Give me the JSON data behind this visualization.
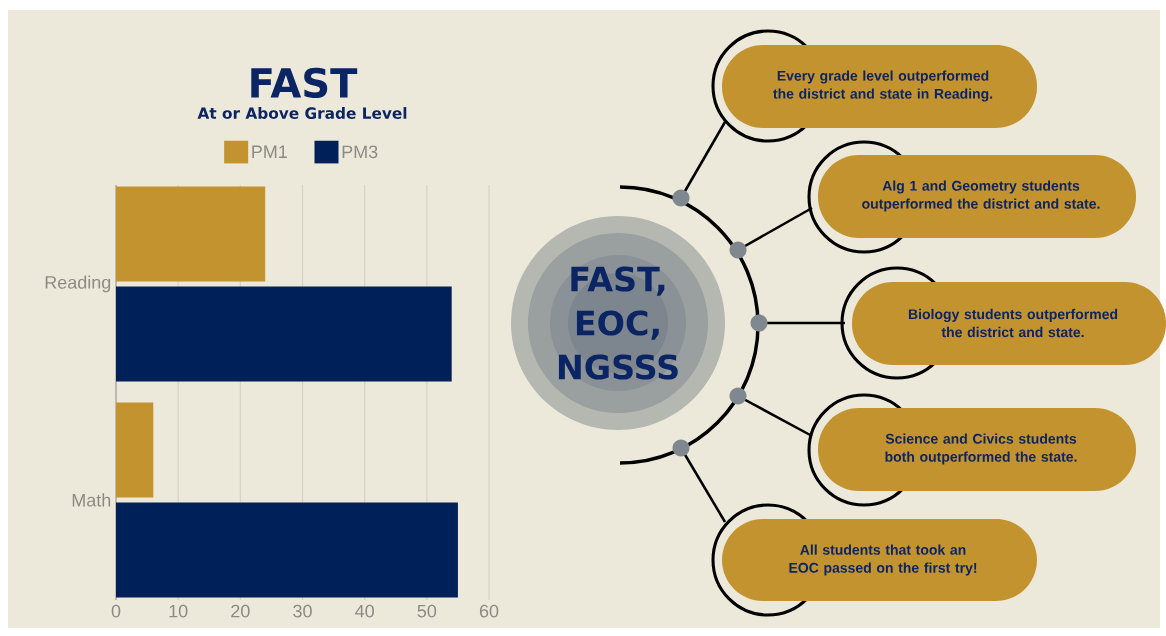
{
  "chart_data": [
    {
      "type": "bar",
      "orientation": "horizontal",
      "title": "FAST",
      "subtitle": "At or Above Grade Level",
      "categories": [
        "Reading",
        "Math"
      ],
      "series": [
        {
          "name": "PM1",
          "color": "#c3932f",
          "values": [
            24,
            6
          ]
        },
        {
          "name": "PM3",
          "color": "#002059",
          "values": [
            54,
            55
          ]
        }
      ],
      "xlim": [
        0,
        60
      ],
      "xticks": [
        0,
        10,
        20,
        30,
        40,
        50,
        60
      ],
      "grid": "x",
      "legend": "top"
    },
    {
      "type": "other",
      "title": "FAST, EOC, NGSSS",
      "annotations": [
        "Every grade level outperformed the district and state in Reading.",
        "Alg 1 and Geometry students outperformed the district and state.",
        "Biology students outperformed the district and state.",
        "Science and Civics students both outperformed the state.",
        "All students that took an EOC passed on the first try!"
      ]
    }
  ]
}
